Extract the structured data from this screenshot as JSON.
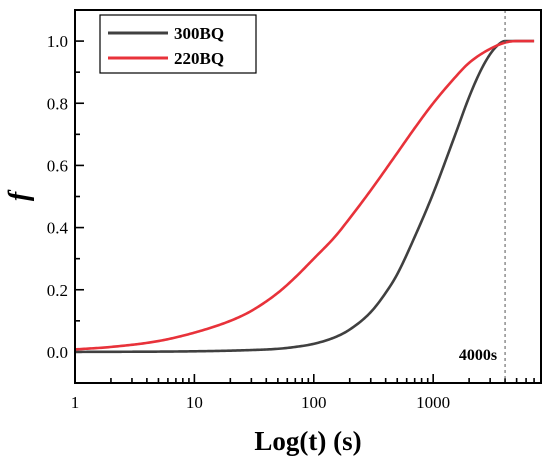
{
  "chart_data": {
    "type": "line",
    "xlabel": "Log(t) (s)",
    "ylabel": "f",
    "xscale": "log",
    "xlim": [
      1,
      8000
    ],
    "ylim": [
      -0.1,
      1.1
    ],
    "x_ticks": [
      1,
      10,
      100,
      1000
    ],
    "x_tick_labels": [
      "1",
      "10",
      "100",
      "1000"
    ],
    "y_ticks": [
      0.0,
      0.2,
      0.4,
      0.6,
      0.8,
      1.0
    ],
    "y_tick_labels": [
      "0.0",
      "0.2",
      "0.4",
      "0.6",
      "0.8",
      "1.0"
    ],
    "grid": false,
    "legend_position": "top-left",
    "series": [
      {
        "name": "300BQ",
        "color": "#404040",
        "x": [
          1,
          10,
          30,
          50,
          70,
          100,
          150,
          200,
          300,
          400,
          500,
          700,
          1000,
          1500,
          2000,
          2500,
          3000,
          3500,
          4000,
          5000,
          7000
        ],
        "y": [
          0.0,
          0.002,
          0.006,
          0.01,
          0.016,
          0.026,
          0.047,
          0.072,
          0.128,
          0.19,
          0.25,
          0.37,
          0.51,
          0.69,
          0.82,
          0.905,
          0.958,
          0.988,
          1.0,
          1.0,
          1.0
        ]
      },
      {
        "name": "220BQ",
        "color": "#e8323a",
        "x": [
          1,
          2,
          5,
          10,
          20,
          30,
          50,
          70,
          100,
          150,
          200,
          300,
          500,
          700,
          1000,
          1500,
          2000,
          3000,
          4000,
          5000,
          7000
        ],
        "y": [
          0.008,
          0.016,
          0.035,
          0.062,
          0.1,
          0.132,
          0.19,
          0.24,
          0.3,
          0.37,
          0.43,
          0.52,
          0.64,
          0.72,
          0.8,
          0.88,
          0.93,
          0.975,
          0.995,
          1.0,
          1.0
        ]
      }
    ],
    "annotations": [
      {
        "text": "4000s",
        "x": 4000,
        "style": "dotted-vertical-line"
      }
    ]
  }
}
